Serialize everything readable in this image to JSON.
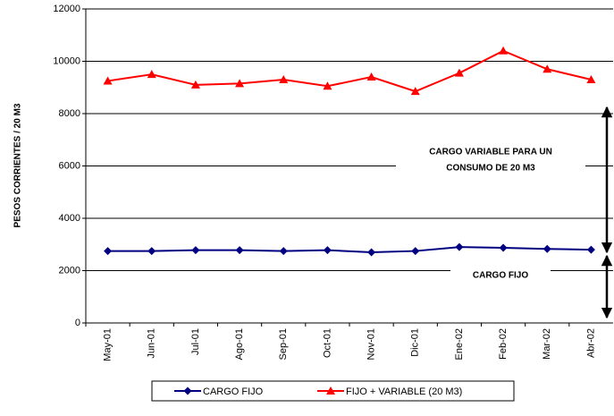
{
  "chart_data": {
    "type": "line",
    "y_label": "PESOS CORRIENTES / 20 M3",
    "categories": [
      "May-01",
      "Jun-01",
      "Jul-01",
      "Ago-01",
      "Sep-01",
      "Oct-01",
      "Nov-01",
      "Dic-01",
      "Ene-02",
      "Feb-02",
      "Mar-02",
      "Abr-02"
    ],
    "series": [
      {
        "name": "CARGO FIJO",
        "color": "#000080",
        "marker": "diamond",
        "values": [
          2750,
          2750,
          2780,
          2780,
          2750,
          2780,
          2700,
          2750,
          2900,
          2870,
          2830,
          2800
        ]
      },
      {
        "name": "FIJO + VARIABLE (20 M3)",
        "color": "#ff0000",
        "marker": "triangle",
        "values": [
          9250,
          9500,
          9100,
          9150,
          9300,
          9050,
          9400,
          8850,
          9550,
          10400,
          9700,
          9300
        ]
      }
    ],
    "ylim": [
      0,
      12000
    ],
    "yticks": [
      0,
      2000,
      4000,
      6000,
      8000,
      10000,
      12000
    ],
    "grid": true,
    "legend": "bottom",
    "annotations": [
      {
        "lines": [
          "CARGO  VARIABLE PARA UN",
          "CONSUMO DE 20 M3"
        ]
      },
      {
        "lines": [
          "CARGO FIJO"
        ]
      }
    ]
  }
}
